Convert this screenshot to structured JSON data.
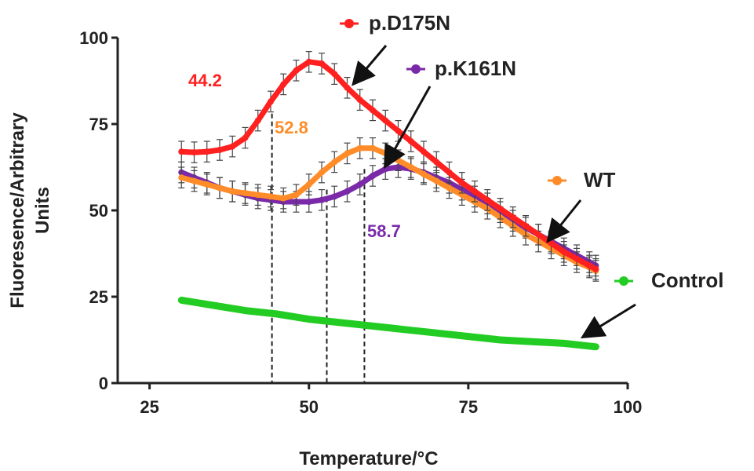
{
  "chart_data": {
    "type": "line",
    "xlabel": "Temperature/°C",
    "ylabel_lines": [
      "Fluoresence/Arbitrary",
      "Units"
    ],
    "xlim": [
      20,
      100
    ],
    "ylim": [
      0,
      100
    ],
    "xticks": [
      25,
      50,
      75,
      100
    ],
    "yticks": [
      0,
      25,
      50,
      75,
      100
    ],
    "grid": false,
    "legend_placement": "right, with arrows pointing to curves",
    "series": [
      {
        "name": "p.D175N",
        "color": "#ff2020",
        "error_bars": true,
        "x": [
          30,
          32,
          34,
          36,
          38,
          40,
          42,
          44,
          46,
          48,
          50,
          52,
          54,
          56,
          58,
          60,
          62,
          64,
          66,
          68,
          70,
          72,
          74,
          76,
          78,
          80,
          82,
          84,
          86,
          88,
          90,
          92,
          94,
          95
        ],
        "y": [
          67,
          66.8,
          67,
          67.5,
          68.5,
          71,
          76,
          81.5,
          86.5,
          90.5,
          93,
          92.5,
          89.5,
          85.5,
          82,
          79,
          76,
          73,
          70,
          67,
          64,
          61,
          58,
          55.5,
          53,
          50.5,
          48,
          45.5,
          43,
          40.5,
          38,
          36,
          34,
          33
        ]
      },
      {
        "name": "p.K161N",
        "color": "#7a2aa8",
        "error_bars": true,
        "x": [
          30,
          32,
          34,
          36,
          38,
          40,
          42,
          44,
          46,
          48,
          50,
          52,
          54,
          56,
          58,
          60,
          62,
          64,
          66,
          68,
          70,
          72,
          74,
          76,
          78,
          80,
          82,
          84,
          86,
          88,
          90,
          92,
          94,
          95
        ],
        "y": [
          61,
          59.5,
          58,
          56.5,
          55.5,
          54.5,
          53.5,
          53,
          52.5,
          52.5,
          52.5,
          53,
          54,
          55.5,
          57.5,
          60,
          62,
          62.5,
          62,
          61,
          59.5,
          58,
          56,
          54,
          52,
          49.5,
          47,
          45,
          43,
          41,
          39,
          37,
          35,
          34
        ]
      },
      {
        "name": "WT",
        "color": "#ff8c28",
        "error_bars": true,
        "x": [
          30,
          32,
          34,
          36,
          38,
          40,
          42,
          44,
          46,
          48,
          50,
          52,
          54,
          56,
          58,
          60,
          62,
          64,
          66,
          68,
          70,
          72,
          74,
          76,
          78,
          80,
          82,
          84,
          86,
          88,
          90,
          92,
          94,
          95
        ],
        "y": [
          59.5,
          58.5,
          57.5,
          56.5,
          55.5,
          55,
          54.5,
          54,
          53.5,
          54.5,
          57.5,
          61,
          64,
          66.5,
          68,
          68,
          66.5,
          64.5,
          62.5,
          60.5,
          58.5,
          56.5,
          54.5,
          52.5,
          50.5,
          48,
          45.5,
          43,
          41,
          39,
          37,
          35,
          33.5,
          32.5
        ]
      },
      {
        "name": "Control",
        "color": "#22cc22",
        "error_bars": false,
        "x": [
          30,
          35,
          40,
          45,
          50,
          55,
          60,
          65,
          70,
          75,
          80,
          85,
          90,
          95
        ],
        "y": [
          24,
          22.5,
          21,
          20,
          18.5,
          17.5,
          16.5,
          15.5,
          14.5,
          13.5,
          12.5,
          12,
          11.5,
          10.5
        ]
      }
    ],
    "annotations": [
      {
        "text": "44.2",
        "x": 44.2,
        "color": "#ff2020"
      },
      {
        "text": "52.8",
        "x": 52.8,
        "color": "#ff8c28"
      },
      {
        "text": "58.7",
        "x": 58.7,
        "color": "#7a2aa8"
      }
    ],
    "legend": [
      {
        "label": "p.D175N",
        "color": "#ff2020"
      },
      {
        "label": "p.K161N",
        "color": "#7a2aa8"
      },
      {
        "label": "WT",
        "color": "#ff8c28"
      },
      {
        "label": "Control",
        "color": "#22cc22"
      }
    ]
  }
}
